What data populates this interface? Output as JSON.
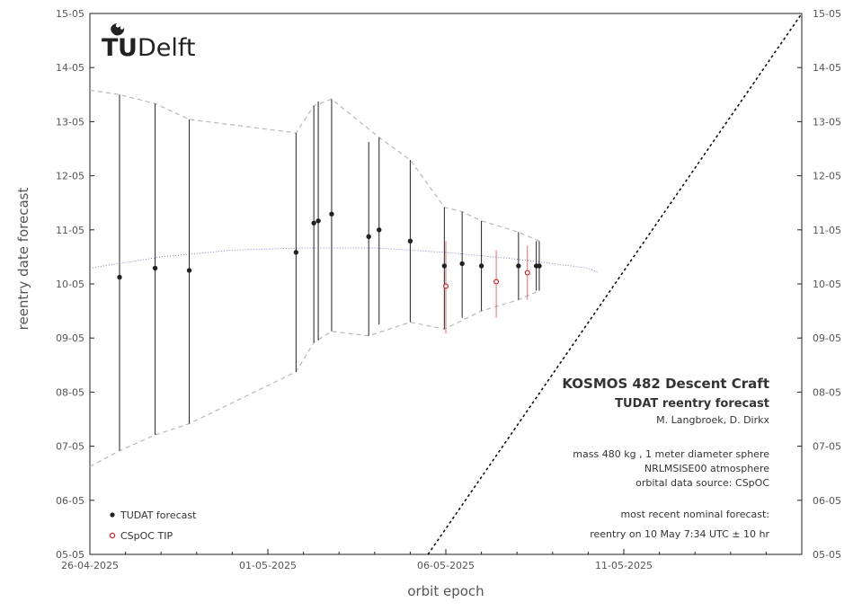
{
  "logo": {
    "letter_t": "T",
    "letter_u": "U",
    "word": "Delft"
  },
  "chart_data": {
    "type": "scatter",
    "title": "",
    "xlabel": "orbit epoch",
    "ylabel": "reentry date forecast",
    "x_tick_labels": [
      "26-04-2025",
      "01-05-2025",
      "06-05-2025",
      "11-05-2025"
    ],
    "y_tick_labels": [
      "05-05",
      "06-05",
      "07-05",
      "08-05",
      "09-05",
      "10-05",
      "11-05",
      "12-05",
      "13-05",
      "14-05",
      "15-05"
    ],
    "xlim": [
      "2025-04-26",
      "2025-05-16"
    ],
    "ylim": [
      "2025-05-05",
      "2025-05-15"
    ],
    "series": [
      {
        "name": "TUDAT forecast",
        "color": "#222222",
        "points": [
          {
            "x": "2025-04-26 20:00",
            "y": "2025-05-10 03:00",
            "lo": "2025-05-06 22:00",
            "hi": "2025-05-13 12:00"
          },
          {
            "x": "2025-04-27 20:00",
            "y": "2025-05-10 07:00",
            "lo": "2025-05-07 05:00",
            "hi": "2025-05-13 08:00"
          },
          {
            "x": "2025-04-28 19:00",
            "y": "2025-05-10 06:00",
            "lo": "2025-05-07 10:00",
            "hi": "2025-05-13 01:00"
          },
          {
            "x": "2025-05-01 19:00",
            "y": "2025-05-10 14:00",
            "lo": "2025-05-08 09:00",
            "hi": "2025-05-12 19:00"
          },
          {
            "x": "2025-05-02 07:00",
            "y": "2025-05-11 03:00",
            "lo": "2025-05-08 22:00",
            "hi": "2025-05-13 07:00"
          },
          {
            "x": "2025-05-02 10:00",
            "y": "2025-05-11 04:00",
            "lo": "2025-05-08 23:00",
            "hi": "2025-05-13 09:00"
          },
          {
            "x": "2025-05-02 19:00",
            "y": "2025-05-11 07:00",
            "lo": "2025-05-09 03:00",
            "hi": "2025-05-13 10:00"
          },
          {
            "x": "2025-05-03 20:00",
            "y": "2025-05-10 21:00",
            "lo": "2025-05-09 01:00",
            "hi": "2025-05-12 15:00"
          },
          {
            "x": "2025-05-04 03:00",
            "y": "2025-05-11 00:00",
            "lo": "2025-05-09 06:00",
            "hi": "2025-05-12 17:00"
          },
          {
            "x": "2025-05-05 00:00",
            "y": "2025-05-10 19:00",
            "lo": "2025-05-09 07:00",
            "hi": "2025-05-12 07:00"
          },
          {
            "x": "2025-05-05 23:00",
            "y": "2025-05-10 08:00",
            "lo": "2025-05-09 04:00",
            "hi": "2025-05-11 10:00"
          },
          {
            "x": "2025-05-06 11:00",
            "y": "2025-05-10 09:00",
            "lo": "2025-05-09 09:00",
            "hi": "2025-05-11 08:00"
          },
          {
            "x": "2025-05-07 00:00",
            "y": "2025-05-10 08:00",
            "lo": "2025-05-09 12:00",
            "hi": "2025-05-11 04:00"
          },
          {
            "x": "2025-05-08 01:00",
            "y": "2025-05-10 08:00",
            "lo": "2025-05-09 17:00",
            "hi": "2025-05-10 23:00"
          },
          {
            "x": "2025-05-08 13:00",
            "y": "2025-05-10 08:00",
            "lo": "2025-05-09 21:00",
            "hi": "2025-05-10 19:00"
          },
          {
            "x": "2025-05-08 15:00",
            "y": "2025-05-10 08:00",
            "lo": "2025-05-09 21:00",
            "hi": "2025-05-10 19:00"
          }
        ]
      },
      {
        "name": "CSpOC TIP",
        "color": "#cc2222",
        "points": [
          {
            "x": "2025-05-06 00:00",
            "y": "2025-05-09 23:00",
            "lo": "2025-05-09 02:00",
            "hi": "2025-05-10 19:00"
          },
          {
            "x": "2025-05-07 10:00",
            "y": "2025-05-10 01:00",
            "lo": "2025-05-09 09:00",
            "hi": "2025-05-10 15:00"
          },
          {
            "x": "2025-05-08 07:00",
            "y": "2025-05-10 05:00",
            "lo": "2025-05-09 17:00",
            "hi": "2025-05-10 17:00"
          }
        ]
      }
    ],
    "nominal_trend": [
      {
        "x": "2025-04-26 00:00",
        "y": "2025-05-10 07:00"
      },
      {
        "x": "2025-04-28 00:00",
        "y": "2025-05-10 12:00"
      },
      {
        "x": "2025-04-30 00:00",
        "y": "2025-05-10 15:00"
      },
      {
        "x": "2025-05-02 00:00",
        "y": "2025-05-10 16:00"
      },
      {
        "x": "2025-05-04 00:00",
        "y": "2025-05-10 16:00"
      },
      {
        "x": "2025-05-06 00:00",
        "y": "2025-05-10 14:00"
      },
      {
        "x": "2025-05-08 00:00",
        "y": "2025-05-10 11:00"
      },
      {
        "x": "2025-05-10 00:00",
        "y": "2025-05-10 07:00"
      },
      {
        "x": "2025-05-10 07:00",
        "y": "2025-05-10 05:00"
      }
    ],
    "upper_envelope": [
      {
        "x": "2025-04-26 00:00",
        "y": "2025-05-13 14:00"
      },
      {
        "x": "2025-04-26 20:00",
        "y": "2025-05-13 12:00"
      },
      {
        "x": "2025-04-27 20:00",
        "y": "2025-05-13 08:00"
      },
      {
        "x": "2025-04-28 19:00",
        "y": "2025-05-13 01:00"
      },
      {
        "x": "2025-05-01 19:00",
        "y": "2025-05-12 19:00"
      },
      {
        "x": "2025-05-02 07:00",
        "y": "2025-05-13 07:00"
      },
      {
        "x": "2025-05-02 19:00",
        "y": "2025-05-13 10:00"
      },
      {
        "x": "2025-05-04 03:00",
        "y": "2025-05-12 17:00"
      },
      {
        "x": "2025-05-05 00:00",
        "y": "2025-05-12 07:00"
      },
      {
        "x": "2025-05-05 23:00",
        "y": "2025-05-11 10:00"
      },
      {
        "x": "2025-05-06 11:00",
        "y": "2025-05-11 08:00"
      },
      {
        "x": "2025-05-07 00:00",
        "y": "2025-05-11 04:00"
      },
      {
        "x": "2025-05-08 01:00",
        "y": "2025-05-10 23:00"
      },
      {
        "x": "2025-05-08 15:00",
        "y": "2025-05-10 19:00"
      }
    ],
    "lower_envelope": [
      {
        "x": "2025-04-26 00:00",
        "y": "2025-05-06 15:00"
      },
      {
        "x": "2025-04-26 20:00",
        "y": "2025-05-06 22:00"
      },
      {
        "x": "2025-04-27 20:00",
        "y": "2025-05-07 05:00"
      },
      {
        "x": "2025-04-28 19:00",
        "y": "2025-05-07 10:00"
      },
      {
        "x": "2025-05-01 19:00",
        "y": "2025-05-08 09:00"
      },
      {
        "x": "2025-05-02 07:00",
        "y": "2025-05-08 22:00"
      },
      {
        "x": "2025-05-02 19:00",
        "y": "2025-05-09 03:00"
      },
      {
        "x": "2025-05-03 20:00",
        "y": "2025-05-09 01:00"
      },
      {
        "x": "2025-05-05 00:00",
        "y": "2025-05-09 07:00"
      },
      {
        "x": "2025-05-05 23:00",
        "y": "2025-05-09 04:00"
      },
      {
        "x": "2025-05-07 00:00",
        "y": "2025-05-09 12:00"
      },
      {
        "x": "2025-05-08 01:00",
        "y": "2025-05-09 17:00"
      },
      {
        "x": "2025-05-08 15:00",
        "y": "2025-05-09 21:00"
      }
    ],
    "diagonal": {
      "from": {
        "x": "2025-05-05 12:00",
        "y": "2025-05-05 00:00"
      },
      "to": {
        "x": "2025-05-16 00:00",
        "y": "2025-05-15 00:00"
      }
    },
    "legend_position": "bottom-left",
    "grid": false
  },
  "info": {
    "title": "KOSMOS 482 Descent Craft",
    "subtitle": "TUDAT reentry forecast",
    "authors": "M. Langbroek, D. Dirkx",
    "params": [
      "mass 480 kg , 1 meter diameter  sphere",
      "NRLMSISE00  atmosphere",
      "orbital data source:  CSpOC"
    ],
    "forecast_label": "most recent nominal forecast:",
    "forecast_value": "reentry on 10 May 7:34 UTC ± 10 hr"
  }
}
